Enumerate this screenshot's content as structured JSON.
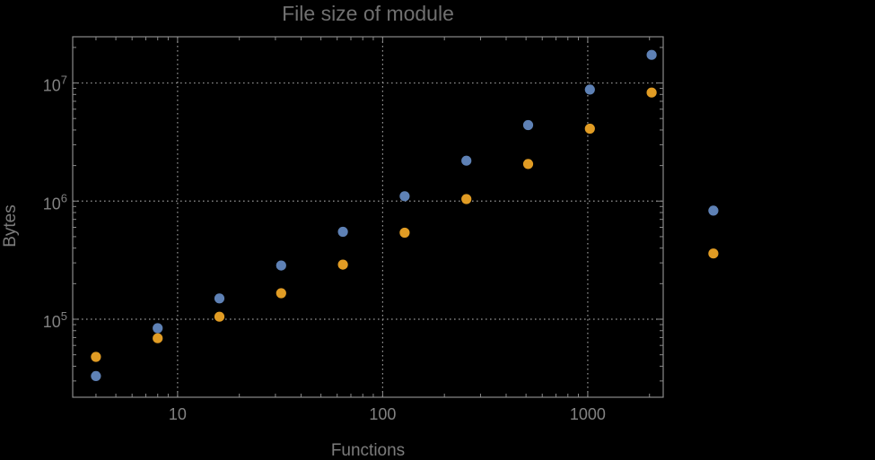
{
  "page": {
    "background": "#000000"
  },
  "chart_data": {
    "type": "scatter",
    "title": "File size of module",
    "xlabel": "Functions",
    "ylabel": "Bytes",
    "x_scale": "log",
    "y_scale": "log",
    "grid": "dotted",
    "legend": "none",
    "xlim": [
      3.08,
      2333
    ],
    "ylim": [
      21850,
      24620000
    ],
    "x": [
      4,
      8,
      16,
      32,
      64,
      128,
      256,
      512,
      1024,
      2048,
      4096
    ],
    "series": [
      {
        "name": "blue",
        "color": "#5e81b5",
        "values": [
          33000,
          84000,
          150000,
          285000,
          550000,
          1100000,
          2200000,
          4400000,
          8800000,
          17300000,
          830000
        ]
      },
      {
        "name": "orange",
        "color": "#e19c24",
        "values": [
          48000,
          69000,
          105000,
          166000,
          290000,
          540000,
          1040000,
          2060000,
          4100000,
          8300000,
          360000
        ]
      }
    ],
    "x_tick_labels": [
      {
        "value": 10,
        "label": "10"
      },
      {
        "value": 100,
        "label": "100"
      },
      {
        "value": 1000,
        "label": "1000"
      }
    ],
    "y_tick_labels": [
      {
        "value": 100000,
        "base": "10",
        "exp": "5"
      },
      {
        "value": 1000000,
        "base": "10",
        "exp": "6"
      },
      {
        "value": 10000000,
        "base": "10",
        "exp": "7"
      }
    ],
    "colors": {
      "background": "#000000",
      "frame": "#8a8a8a",
      "grid": "#959595",
      "title_text": "#707070",
      "label_text": "#7c7c7c",
      "tick_text": "#828282"
    }
  }
}
